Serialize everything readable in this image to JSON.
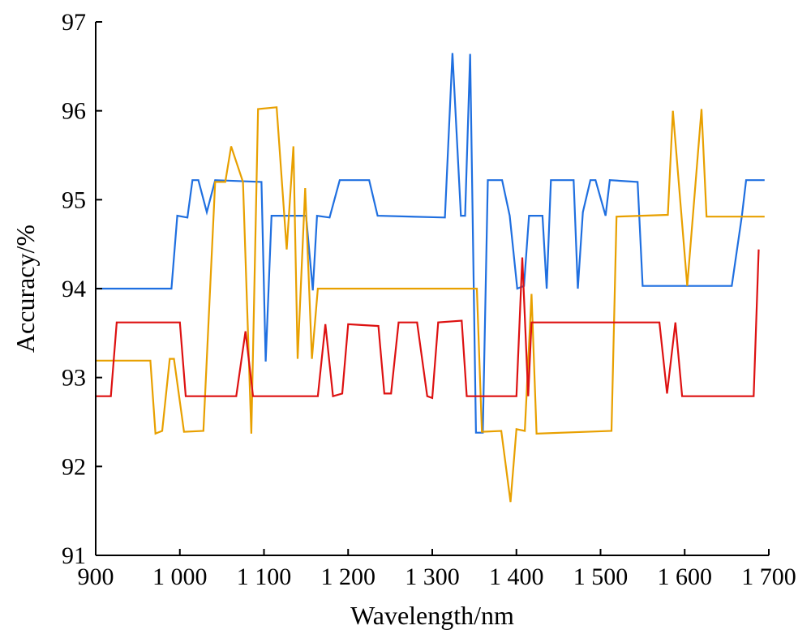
{
  "chart_data": {
    "type": "line",
    "title": "",
    "xlabel": "Wavelength/nm",
    "ylabel": "Accuracy/%",
    "xlim": [
      900,
      1700
    ],
    "ylim": [
      91,
      97
    ],
    "grid": false,
    "x_ticks": [
      900,
      1000,
      1100,
      1200,
      1300,
      1400,
      1500,
      1600,
      1700
    ],
    "x_tick_labels": [
      "900",
      "1 000",
      "1 100",
      "1 200",
      "1 300",
      "1 400",
      "1 500",
      "1 600",
      "1 700"
    ],
    "y_ticks": [
      91,
      92,
      93,
      94,
      95,
      96,
      97
    ],
    "y_tick_labels": [
      "91",
      "92",
      "93",
      "94",
      "95",
      "96",
      "97"
    ],
    "series": [
      {
        "color": "#1f6fe0",
        "points": [
          [
            900,
            94.0
          ],
          [
            990,
            94.0
          ],
          [
            997,
            94.82
          ],
          [
            1009,
            94.8
          ],
          [
            1015,
            95.22
          ],
          [
            1022,
            95.22
          ],
          [
            1032,
            94.86
          ],
          [
            1042,
            95.22
          ],
          [
            1097,
            95.2
          ],
          [
            1102,
            93.18
          ],
          [
            1109,
            94.82
          ],
          [
            1146,
            94.82
          ],
          [
            1150,
            94.82
          ],
          [
            1158,
            93.98
          ],
          [
            1163,
            94.82
          ],
          [
            1178,
            94.8
          ],
          [
            1190,
            95.22
          ],
          [
            1225,
            95.22
          ],
          [
            1235,
            94.82
          ],
          [
            1315,
            94.8
          ],
          [
            1324,
            96.65
          ],
          [
            1334,
            94.82
          ],
          [
            1339,
            94.82
          ],
          [
            1345,
            96.64
          ],
          [
            1352,
            92.38
          ],
          [
            1360,
            92.38
          ],
          [
            1366,
            95.22
          ],
          [
            1383,
            95.22
          ],
          [
            1392,
            94.82
          ],
          [
            1401,
            94.0
          ],
          [
            1409,
            94.03
          ],
          [
            1415,
            94.82
          ],
          [
            1431,
            94.82
          ],
          [
            1436,
            94.0
          ],
          [
            1441,
            95.22
          ],
          [
            1468,
            95.22
          ],
          [
            1473,
            94.0
          ],
          [
            1479,
            94.86
          ],
          [
            1488,
            95.22
          ],
          [
            1494,
            95.22
          ],
          [
            1506,
            94.82
          ],
          [
            1511,
            95.22
          ],
          [
            1544,
            95.2
          ],
          [
            1550,
            94.03
          ],
          [
            1656,
            94.03
          ],
          [
            1668,
            94.82
          ],
          [
            1673,
            95.22
          ],
          [
            1695,
            95.22
          ]
        ]
      },
      {
        "color": "#e8a000",
        "points": [
          [
            900,
            93.19
          ],
          [
            965,
            93.19
          ],
          [
            971,
            92.37
          ],
          [
            979,
            92.4
          ],
          [
            988,
            93.21
          ],
          [
            993,
            93.21
          ],
          [
            1005,
            92.39
          ],
          [
            1028,
            92.4
          ],
          [
            1042,
            95.2
          ],
          [
            1054,
            95.2
          ],
          [
            1061,
            95.6
          ],
          [
            1075,
            95.2
          ],
          [
            1085,
            92.37
          ],
          [
            1093,
            96.02
          ],
          [
            1115,
            96.04
          ],
          [
            1127,
            94.44
          ],
          [
            1135,
            95.6
          ],
          [
            1140,
            93.21
          ],
          [
            1149,
            95.13
          ],
          [
            1157,
            93.21
          ],
          [
            1164,
            94.0
          ],
          [
            1353,
            94.0
          ],
          [
            1359,
            92.39
          ],
          [
            1382,
            92.4
          ],
          [
            1393,
            91.6
          ],
          [
            1400,
            92.42
          ],
          [
            1410,
            92.4
          ],
          [
            1418,
            93.94
          ],
          [
            1424,
            92.37
          ],
          [
            1513,
            92.4
          ],
          [
            1519,
            94.81
          ],
          [
            1580,
            94.83
          ],
          [
            1586,
            96.0
          ],
          [
            1603,
            94.03
          ],
          [
            1620,
            96.02
          ],
          [
            1626,
            94.81
          ],
          [
            1695,
            94.81
          ]
        ]
      },
      {
        "color": "#dd1111",
        "points": [
          [
            900,
            92.79
          ],
          [
            918,
            92.79
          ],
          [
            925,
            93.62
          ],
          [
            1000,
            93.62
          ],
          [
            1007,
            92.79
          ],
          [
            1067,
            92.79
          ],
          [
            1078,
            93.52
          ],
          [
            1087,
            92.79
          ],
          [
            1164,
            92.79
          ],
          [
            1173,
            93.6
          ],
          [
            1182,
            92.79
          ],
          [
            1193,
            92.82
          ],
          [
            1200,
            93.6
          ],
          [
            1236,
            93.58
          ],
          [
            1243,
            92.82
          ],
          [
            1251,
            92.82
          ],
          [
            1260,
            93.62
          ],
          [
            1282,
            93.62
          ],
          [
            1294,
            92.79
          ],
          [
            1300,
            92.77
          ],
          [
            1307,
            93.62
          ],
          [
            1335,
            93.64
          ],
          [
            1341,
            92.79
          ],
          [
            1400,
            92.79
          ],
          [
            1407,
            94.35
          ],
          [
            1414,
            92.79
          ],
          [
            1418,
            93.62
          ],
          [
            1570,
            93.62
          ],
          [
            1579,
            92.82
          ],
          [
            1589,
            93.62
          ],
          [
            1597,
            92.79
          ],
          [
            1682,
            92.79
          ],
          [
            1688,
            94.44
          ]
        ]
      }
    ]
  }
}
